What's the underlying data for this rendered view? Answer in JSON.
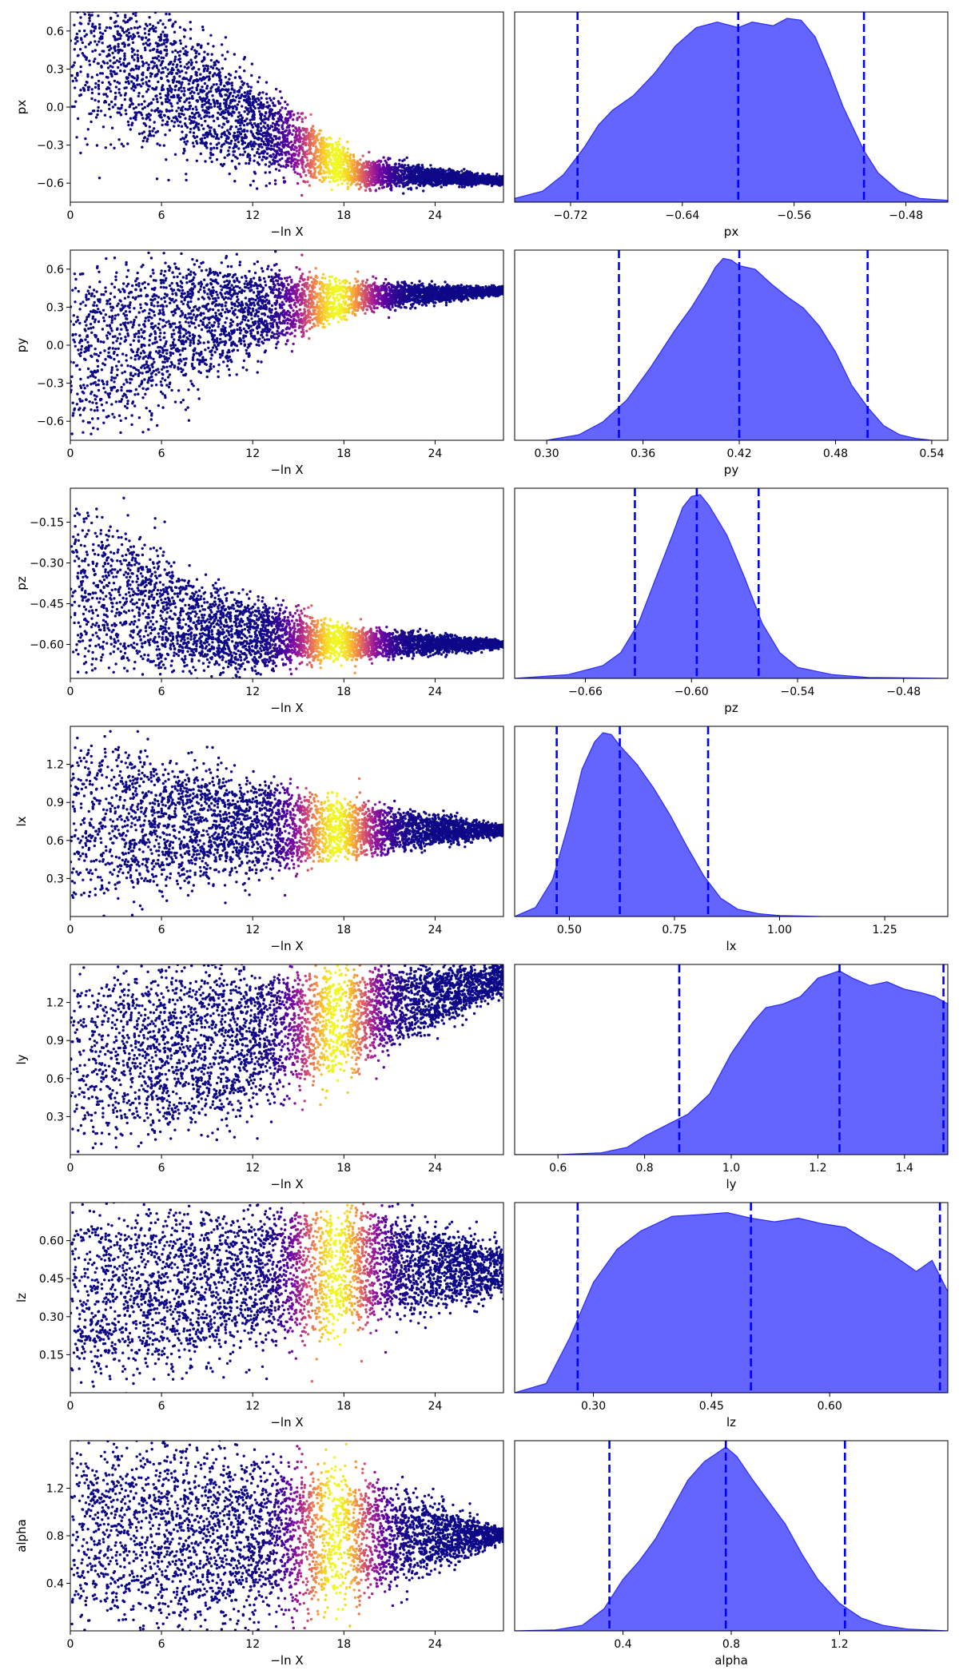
{
  "figure": {
    "type": "dynesty-traceplot"
  },
  "colors": {
    "kde_fill": "#6464ff",
    "kde_edge": "#2b2bff",
    "quantile_line": "#0000ff",
    "trace_cmap": [
      "#0d0887",
      "#5b02a3",
      "#9a179b",
      "#cb4678",
      "#eb7852",
      "#fbb32f",
      "#f0f921"
    ]
  },
  "chart_data": [
    {
      "type": "scatter",
      "param": "px",
      "xlabel": "−ln X",
      "ylabel": "px",
      "xlim": [
        0,
        28.5
      ],
      "ylim": [
        -0.75,
        0.75
      ],
      "xticks": [
        "0",
        "6",
        "12",
        "18",
        "24"
      ],
      "xtick_values": [
        0,
        6,
        12,
        18,
        24
      ],
      "yticks": [
        "0.6",
        "0.3",
        "0.0",
        "−0.3",
        "−0.6"
      ],
      "ytick_values": [
        0.6,
        0.3,
        0.0,
        -0.3,
        -0.6
      ],
      "trace": {
        "x_end": 28.5,
        "y_final": -0.58,
        "y_center": [
          0.6,
          0.0,
          -0.52,
          -0.58
        ],
        "y_spread": [
          0.75,
          0.45,
          0.12,
          0.03
        ],
        "peak_x": 17.5
      }
    },
    {
      "type": "area",
      "param": "px",
      "xlabel": "px",
      "xlim": [
        -0.76,
        -0.45
      ],
      "xticks": [
        "−0.72",
        "−0.64",
        "−0.56",
        "−0.48"
      ],
      "xtick_values": [
        -0.72,
        -0.64,
        -0.56,
        -0.48
      ],
      "quantiles": [
        -0.715,
        -0.6,
        -0.51
      ],
      "density": {
        "x": [
          -0.76,
          -0.74,
          -0.725,
          -0.71,
          -0.7,
          -0.69,
          -0.675,
          -0.66,
          -0.645,
          -0.63,
          -0.615,
          -0.6,
          -0.59,
          -0.575,
          -0.565,
          -0.555,
          -0.545,
          -0.535,
          -0.525,
          -0.51,
          -0.5,
          -0.485,
          -0.47,
          -0.45
        ],
        "y": [
          0.02,
          0.06,
          0.15,
          0.3,
          0.42,
          0.5,
          0.58,
          0.7,
          0.85,
          0.95,
          0.98,
          0.95,
          0.98,
          0.96,
          1.0,
          0.99,
          0.9,
          0.72,
          0.52,
          0.28,
          0.16,
          0.06,
          0.02,
          0.01
        ]
      }
    },
    {
      "type": "scatter",
      "param": "py",
      "xlabel": "−ln X",
      "ylabel": "py",
      "xlim": [
        0,
        28.5
      ],
      "ylim": [
        -0.75,
        0.75
      ],
      "xticks": [
        "0",
        "6",
        "12",
        "18",
        "24"
      ],
      "xtick_values": [
        0,
        6,
        12,
        18,
        24
      ],
      "yticks": [
        "0.6",
        "0.3",
        "0.0",
        "−0.3",
        "−0.6"
      ],
      "ytick_values": [
        0.6,
        0.3,
        0.0,
        -0.3,
        -0.6
      ],
      "trace": {
        "x_end": 28.5,
        "y_final": 0.43,
        "y_center": [
          -0.1,
          0.22,
          0.38,
          0.43
        ],
        "y_spread": [
          0.75,
          0.45,
          0.12,
          0.03
        ],
        "peak_x": 17.5
      }
    },
    {
      "type": "area",
      "param": "py",
      "xlabel": "py",
      "xlim": [
        0.28,
        0.55
      ],
      "xticks": [
        "0.30",
        "0.36",
        "0.42",
        "0.48",
        "0.54"
      ],
      "xtick_values": [
        0.3,
        0.36,
        0.42,
        0.48,
        0.54
      ],
      "quantiles": [
        0.345,
        0.42,
        0.5
      ],
      "density": {
        "x": [
          0.3,
          0.32,
          0.335,
          0.35,
          0.365,
          0.38,
          0.39,
          0.4,
          0.405,
          0.41,
          0.415,
          0.42,
          0.43,
          0.44,
          0.45,
          0.46,
          0.47,
          0.48,
          0.49,
          0.5,
          0.51,
          0.52,
          0.53,
          0.54
        ],
        "y": [
          0.0,
          0.03,
          0.1,
          0.22,
          0.4,
          0.6,
          0.72,
          0.86,
          0.94,
          0.99,
          0.98,
          0.95,
          0.93,
          0.85,
          0.78,
          0.72,
          0.62,
          0.48,
          0.3,
          0.18,
          0.08,
          0.03,
          0.01,
          0.0
        ]
      }
    },
    {
      "type": "scatter",
      "param": "pz",
      "xlabel": "−ln X",
      "ylabel": "pz",
      "xlim": [
        0,
        28.5
      ],
      "ylim": [
        -0.725,
        -0.025
      ],
      "xticks": [
        "0",
        "6",
        "12",
        "18",
        "24"
      ],
      "xtick_values": [
        0,
        6,
        12,
        18,
        24
      ],
      "yticks": [
        "−0.15",
        "−0.30",
        "−0.45",
        "−0.60"
      ],
      "ytick_values": [
        -0.15,
        -0.3,
        -0.45,
        -0.6
      ],
      "trace": {
        "x_end": 28.5,
        "y_final": -0.6,
        "y_center": [
          -0.38,
          -0.55,
          -0.6,
          -0.6
        ],
        "y_spread": [
          0.34,
          0.16,
          0.06,
          0.015
        ],
        "peak_x": 17.5
      }
    },
    {
      "type": "area",
      "param": "pz",
      "xlabel": "pz",
      "xlim": [
        -0.7,
        -0.455
      ],
      "xticks": [
        "−0.66",
        "−0.60",
        "−0.54",
        "−0.48"
      ],
      "xtick_values": [
        -0.66,
        -0.6,
        -0.54,
        -0.48
      ],
      "quantiles": [
        -0.632,
        -0.597,
        -0.562
      ],
      "density": {
        "x": [
          -0.7,
          -0.67,
          -0.65,
          -0.64,
          -0.63,
          -0.62,
          -0.61,
          -0.605,
          -0.6,
          -0.595,
          -0.59,
          -0.58,
          -0.57,
          -0.56,
          -0.55,
          -0.54,
          -0.52,
          -0.5,
          -0.455
        ],
        "y": [
          0.0,
          0.02,
          0.07,
          0.14,
          0.3,
          0.55,
          0.8,
          0.93,
          0.99,
          1.0,
          0.94,
          0.78,
          0.55,
          0.3,
          0.14,
          0.06,
          0.02,
          0.005,
          0.0
        ]
      }
    },
    {
      "type": "scatter",
      "param": "lx",
      "xlabel": "−ln X",
      "ylabel": "lx",
      "xlim": [
        0,
        28.5
      ],
      "ylim": [
        0.0,
        1.5
      ],
      "xticks": [
        "0",
        "6",
        "12",
        "18",
        "24"
      ],
      "xtick_values": [
        0,
        6,
        12,
        18,
        24
      ],
      "yticks": [
        "1.2",
        "0.9",
        "0.6",
        "0.3"
      ],
      "ytick_values": [
        1.2,
        0.9,
        0.6,
        0.3
      ],
      "trace": {
        "x_end": 28.5,
        "y_final": 0.68,
        "y_center": [
          0.75,
          0.72,
          0.68,
          0.68
        ],
        "y_spread": [
          0.75,
          0.45,
          0.22,
          0.04
        ],
        "peak_x": 17.5
      }
    },
    {
      "type": "area",
      "param": "lx",
      "xlabel": "lx",
      "xlim": [
        0.37,
        1.4
      ],
      "xticks": [
        "0.50",
        "0.75",
        "1.00",
        "1.25"
      ],
      "xtick_values": [
        0.5,
        0.75,
        1.0,
        1.25
      ],
      "quantiles": [
        0.47,
        0.62,
        0.83
      ],
      "density": {
        "x": [
          0.37,
          0.42,
          0.46,
          0.5,
          0.53,
          0.56,
          0.58,
          0.6,
          0.62,
          0.66,
          0.7,
          0.74,
          0.78,
          0.82,
          0.86,
          0.9,
          0.95,
          1.0,
          1.1,
          1.4
        ],
        "y": [
          0.0,
          0.05,
          0.2,
          0.52,
          0.8,
          0.95,
          1.0,
          0.99,
          0.93,
          0.83,
          0.7,
          0.55,
          0.38,
          0.22,
          0.1,
          0.04,
          0.015,
          0.005,
          0.0,
          0.0
        ]
      }
    },
    {
      "type": "scatter",
      "param": "ly",
      "xlabel": "−ln X",
      "ylabel": "ly",
      "xlim": [
        0,
        28.5
      ],
      "ylim": [
        0.0,
        1.5
      ],
      "xticks": [
        "0",
        "6",
        "12",
        "18",
        "24"
      ],
      "xtick_values": [
        0,
        6,
        12,
        18,
        24
      ],
      "yticks": [
        "1.2",
        "0.9",
        "0.6",
        "0.3"
      ],
      "ytick_values": [
        1.2,
        0.9,
        0.6,
        0.3
      ],
      "trace": {
        "x_end": 28.5,
        "y_final": 1.35,
        "y_center": [
          0.75,
          0.85,
          1.1,
          1.38
        ],
        "y_spread": [
          0.75,
          0.65,
          0.4,
          0.12
        ],
        "peak_x": 17.5
      }
    },
    {
      "type": "area",
      "param": "ly",
      "xlabel": "ly",
      "xlim": [
        0.5,
        1.5
      ],
      "xticks": [
        "0.6",
        "0.8",
        "1.0",
        "1.2",
        "1.4"
      ],
      "xtick_values": [
        0.6,
        0.8,
        1.0,
        1.2,
        1.4
      ],
      "quantiles": [
        0.88,
        1.25,
        1.49
      ],
      "density": {
        "x": [
          0.5,
          0.6,
          0.7,
          0.76,
          0.8,
          0.85,
          0.9,
          0.95,
          1.0,
          1.05,
          1.08,
          1.12,
          1.16,
          1.2,
          1.25,
          1.28,
          1.32,
          1.36,
          1.4,
          1.44,
          1.47,
          1.5
        ],
        "y": [
          0.0,
          0.0,
          0.01,
          0.04,
          0.1,
          0.16,
          0.22,
          0.33,
          0.55,
          0.72,
          0.8,
          0.82,
          0.86,
          0.96,
          1.0,
          0.96,
          0.92,
          0.94,
          0.9,
          0.88,
          0.86,
          0.82
        ]
      }
    },
    {
      "type": "scatter",
      "param": "lz",
      "xlabel": "−ln X",
      "ylabel": "lz",
      "xlim": [
        0,
        28.5
      ],
      "ylim": [
        0.0,
        0.75
      ],
      "xticks": [
        "0",
        "6",
        "12",
        "18",
        "24"
      ],
      "xtick_values": [
        0,
        6,
        12,
        18,
        24
      ],
      "yticks": [
        "0.60",
        "0.45",
        "0.30",
        "0.15"
      ],
      "ytick_values": [
        0.6,
        0.45,
        0.3,
        0.15
      ],
      "trace": {
        "x_end": 28.5,
        "y_final": 0.37,
        "y_center": [
          0.37,
          0.43,
          0.5,
          0.48
        ],
        "y_spread": [
          0.37,
          0.3,
          0.25,
          0.1
        ],
        "peak_x": 17.5
      }
    },
    {
      "type": "area",
      "param": "lz",
      "xlabel": "lz",
      "xlim": [
        0.2,
        0.75
      ],
      "xticks": [
        "0.30",
        "0.45",
        "0.60"
      ],
      "xtick_values": [
        0.3,
        0.45,
        0.6
      ],
      "quantiles": [
        0.28,
        0.5,
        0.74
      ],
      "density": {
        "x": [
          0.2,
          0.24,
          0.27,
          0.3,
          0.33,
          0.36,
          0.4,
          0.44,
          0.47,
          0.5,
          0.53,
          0.56,
          0.59,
          0.62,
          0.65,
          0.68,
          0.71,
          0.73,
          0.75
        ],
        "y": [
          0.0,
          0.05,
          0.3,
          0.6,
          0.78,
          0.88,
          0.96,
          0.97,
          0.98,
          0.95,
          0.93,
          0.95,
          0.92,
          0.9,
          0.82,
          0.75,
          0.66,
          0.72,
          0.55
        ]
      }
    },
    {
      "type": "scatter",
      "param": "alpha",
      "xlabel": "−ln X",
      "ylabel": "alpha",
      "xlim": [
        0,
        28.5
      ],
      "ylim": [
        0.0,
        1.6
      ],
      "xticks": [
        "0",
        "6",
        "12",
        "18",
        "24"
      ],
      "xtick_values": [
        0,
        6,
        12,
        18,
        24
      ],
      "yticks": [
        "1.2",
        "0.8",
        "0.4"
      ],
      "ytick_values": [
        1.2,
        0.8,
        0.4
      ],
      "trace": {
        "x_end": 28.5,
        "y_final": 0.8,
        "y_center": [
          0.8,
          0.8,
          0.8,
          0.8
        ],
        "y_spread": [
          0.8,
          0.8,
          0.55,
          0.05
        ],
        "peak_x": 17.5
      }
    },
    {
      "type": "area",
      "param": "alpha",
      "xlabel": "alpha",
      "xlim": [
        0.0,
        1.6
      ],
      "xticks": [
        "0.4",
        "0.8",
        "1.2"
      ],
      "xtick_values": [
        0.4,
        0.8,
        1.2
      ],
      "quantiles": [
        0.35,
        0.78,
        1.22
      ],
      "density": {
        "x": [
          0.0,
          0.15,
          0.25,
          0.33,
          0.4,
          0.46,
          0.52,
          0.58,
          0.64,
          0.7,
          0.75,
          0.78,
          0.82,
          0.88,
          0.94,
          1.0,
          1.06,
          1.12,
          1.2,
          1.28,
          1.36,
          1.45,
          1.6
        ],
        "y": [
          0.0,
          0.005,
          0.03,
          0.12,
          0.28,
          0.38,
          0.5,
          0.66,
          0.82,
          0.92,
          0.97,
          1.0,
          0.95,
          0.82,
          0.7,
          0.58,
          0.42,
          0.28,
          0.15,
          0.07,
          0.03,
          0.01,
          0.0
        ]
      }
    }
  ]
}
